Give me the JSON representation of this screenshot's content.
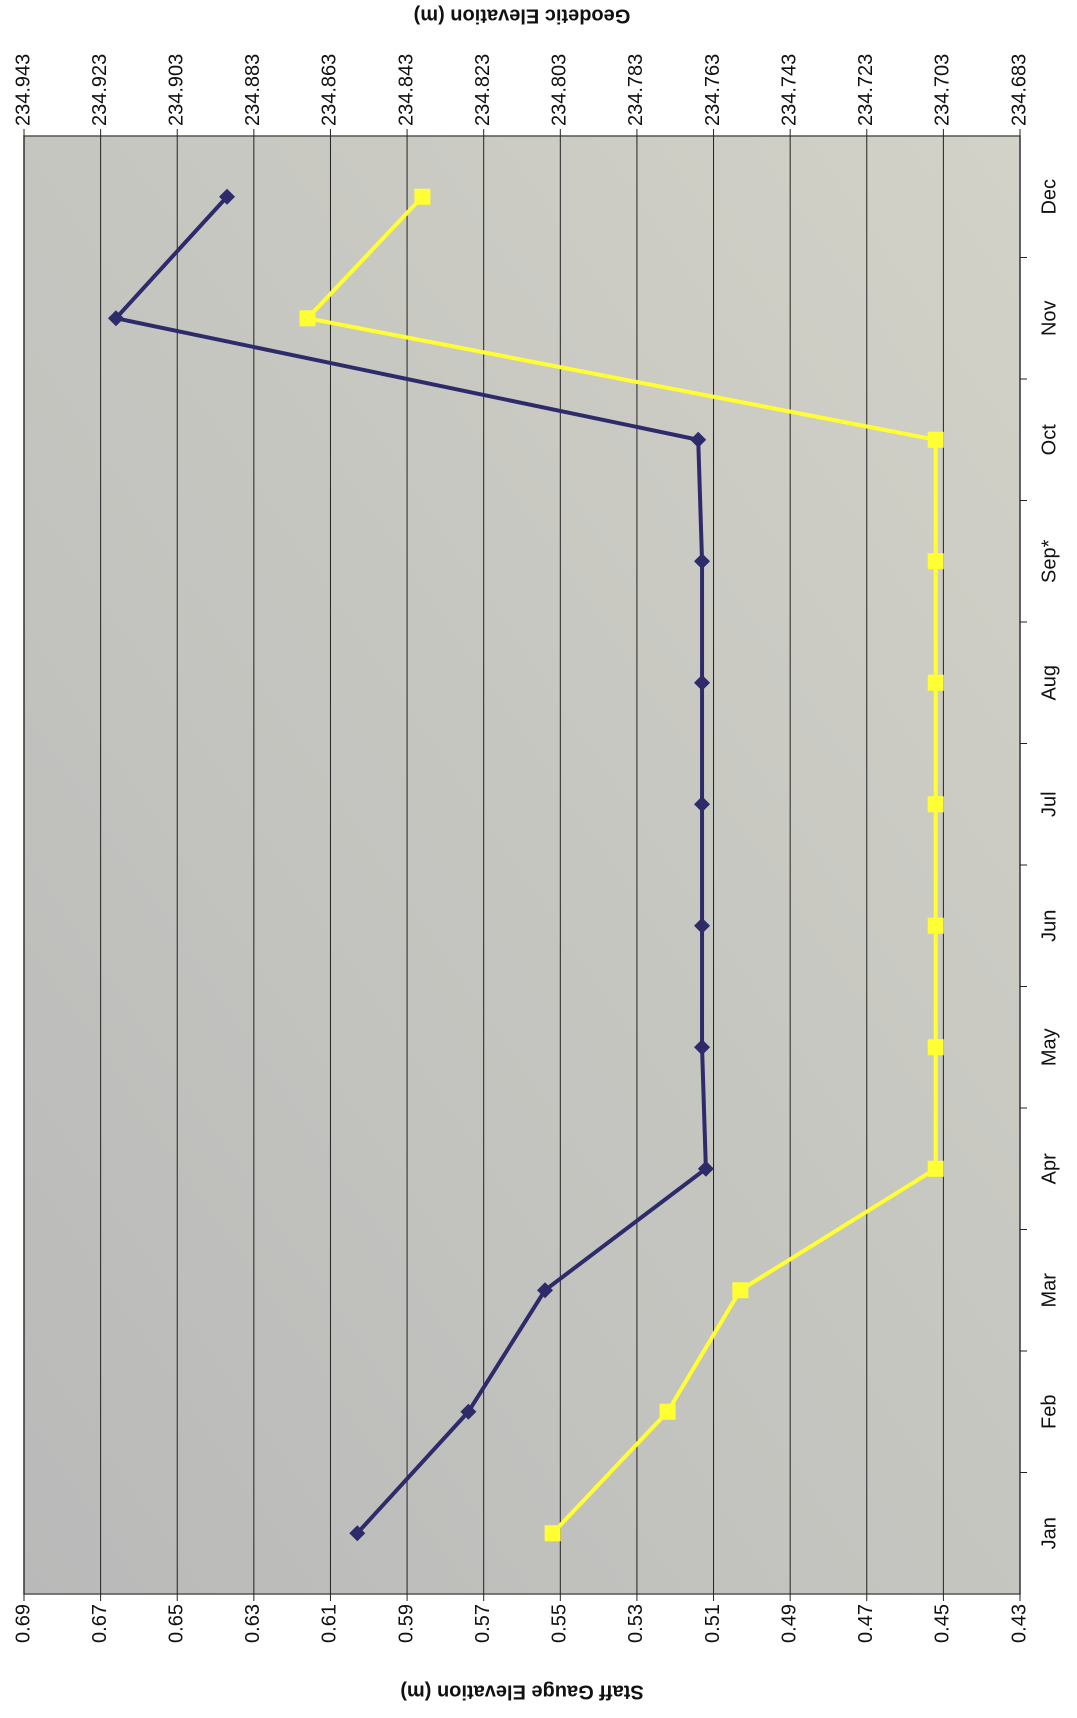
{
  "chart_data": {
    "type": "line",
    "ylabel": "Staff Gauge Elevation (m)",
    "y2label": "Geodetic Elevation (m)",
    "categories": [
      "Jan",
      "Feb",
      "Mar",
      "Apr",
      "May",
      "Jun",
      "Jul",
      "Aug",
      "Sep*",
      "Oct",
      "Nov",
      "Dec"
    ],
    "series": [
      {
        "color": "#2e2b6b",
        "marker": "diamond",
        "values": [
          0.603,
          0.574,
          0.554,
          0.512,
          0.513,
          0.513,
          0.513,
          0.513,
          0.513,
          0.514,
          0.666,
          0.637
        ]
      },
      {
        "color": "#ffff33",
        "marker": "square",
        "axis": "y2",
        "values": [
          234.805,
          234.775,
          234.756,
          234.705,
          234.705,
          234.705,
          234.705,
          234.705,
          234.705,
          234.705,
          234.869,
          234.839
        ]
      }
    ],
    "ylim": [
      0.43,
      0.69
    ],
    "yticks": [
      0.43,
      0.45,
      0.47,
      0.49,
      0.51,
      0.53,
      0.55,
      0.57,
      0.59,
      0.61,
      0.63,
      0.65,
      0.67,
      0.69
    ],
    "y2lim": [
      234.683,
      234.943
    ],
    "y2ticks": [
      234.683,
      234.703,
      234.723,
      234.743,
      234.763,
      234.783,
      234.803,
      234.823,
      234.843,
      234.863,
      234.883,
      234.903,
      234.923,
      234.943
    ],
    "grid": true,
    "background": "#c3c3c0"
  }
}
